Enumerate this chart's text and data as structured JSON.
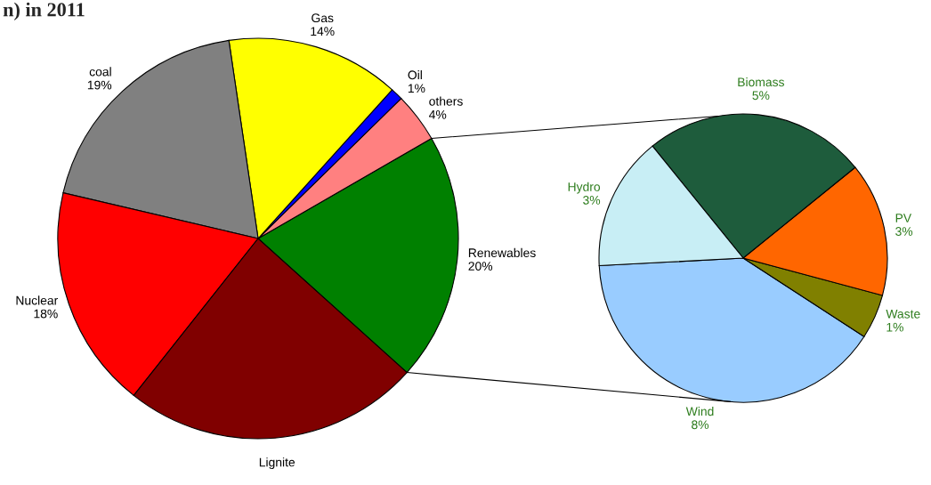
{
  "chart_data": [
    {
      "type": "pie",
      "title": "n) in 2011",
      "categories": [
        "Renewables",
        "others",
        "Oil",
        "Gas",
        "coal",
        "Nuclear",
        "Lignite"
      ],
      "values": [
        20,
        4,
        1,
        14,
        19,
        18,
        24
      ],
      "value_labels": [
        "20%",
        "4%",
        "1%",
        "14%",
        "19%",
        "18%",
        null
      ],
      "colors": [
        "#008000",
        "#ff8080",
        "#0000ff",
        "#ffff00",
        "#808080",
        "#ff0000",
        "#800000"
      ]
    },
    {
      "type": "pie",
      "categories": [
        "Wind",
        "Waste",
        "PV",
        "Biomass",
        "Hydro"
      ],
      "values": [
        8,
        1,
        3,
        5,
        3
      ],
      "value_labels": [
        "8%",
        "1%",
        "3%",
        "5%",
        "3%"
      ],
      "colors": [
        "#99ccff",
        "#808000",
        "#ff6600",
        "#1e5c3c",
        "#c8eef5"
      ]
    }
  ]
}
